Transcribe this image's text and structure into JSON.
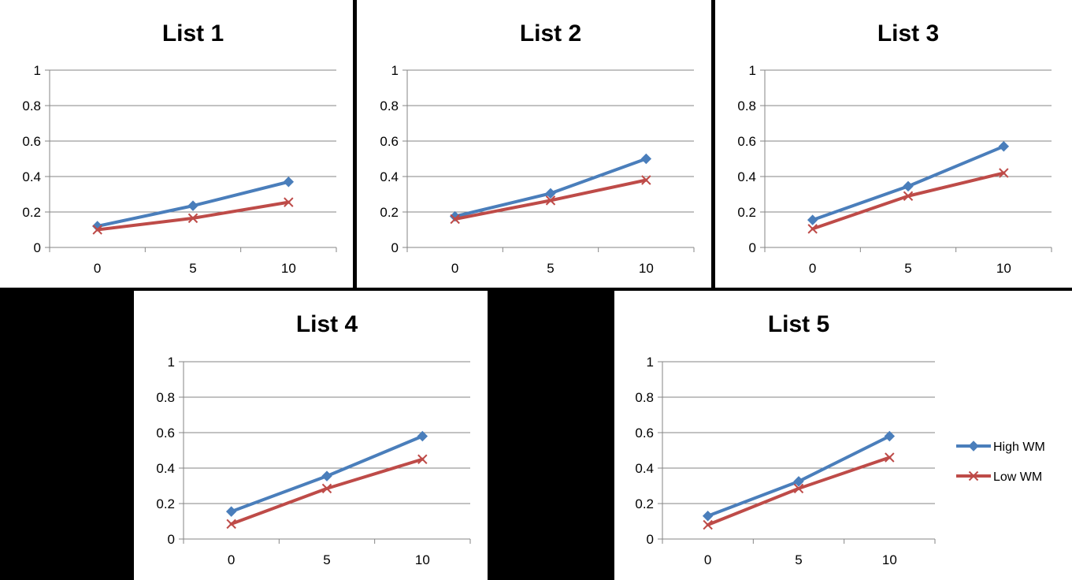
{
  "colors": {
    "high_wm": "#4A7EBB",
    "low_wm": "#BE4B48",
    "grid": "#868686",
    "background": "#000000",
    "panel": "#ffffff"
  },
  "legend": {
    "placement": "right",
    "items": [
      {
        "label": "High WM",
        "marker": "diamond"
      },
      {
        "label": "Low WM",
        "marker": "x"
      }
    ]
  },
  "chart_data": [
    {
      "type": "line",
      "title": "List 1",
      "categories": [
        "0",
        "5",
        "10"
      ],
      "ylim": [
        0,
        1
      ],
      "yticks": [
        "0",
        "0.2",
        "0.4",
        "0.6",
        "0.8",
        "1"
      ],
      "grid": true,
      "series": [
        {
          "name": "High WM",
          "values": [
            0.12,
            0.235,
            0.37
          ]
        },
        {
          "name": "Low WM",
          "values": [
            0.1,
            0.165,
            0.255
          ]
        }
      ]
    },
    {
      "type": "line",
      "title": "List 2",
      "categories": [
        "0",
        "5",
        "10"
      ],
      "ylim": [
        0,
        1
      ],
      "yticks": [
        "0",
        "0.2",
        "0.4",
        "0.6",
        "0.8",
        "1"
      ],
      "grid": true,
      "series": [
        {
          "name": "High WM",
          "values": [
            0.175,
            0.305,
            0.5
          ]
        },
        {
          "name": "Low WM",
          "values": [
            0.16,
            0.265,
            0.38
          ]
        }
      ]
    },
    {
      "type": "line",
      "title": "List 3",
      "categories": [
        "0",
        "5",
        "10"
      ],
      "ylim": [
        0,
        1
      ],
      "yticks": [
        "0",
        "0.2",
        "0.4",
        "0.6",
        "0.8",
        "1"
      ],
      "grid": true,
      "series": [
        {
          "name": "High WM",
          "values": [
            0.155,
            0.345,
            0.57
          ]
        },
        {
          "name": "Low WM",
          "values": [
            0.105,
            0.29,
            0.42
          ]
        }
      ]
    },
    {
      "type": "line",
      "title": "List 4",
      "categories": [
        "0",
        "5",
        "10"
      ],
      "ylim": [
        0,
        1
      ],
      "yticks": [
        "0",
        "0.2",
        "0.4",
        "0.6",
        "0.8",
        "1"
      ],
      "grid": true,
      "series": [
        {
          "name": "High WM",
          "values": [
            0.155,
            0.355,
            0.58
          ]
        },
        {
          "name": "Low WM",
          "values": [
            0.085,
            0.285,
            0.45
          ]
        }
      ]
    },
    {
      "type": "line",
      "title": "List 5",
      "categories": [
        "0",
        "5",
        "10"
      ],
      "ylim": [
        0,
        1
      ],
      "yticks": [
        "0",
        "0.2",
        "0.4",
        "0.6",
        "0.8",
        "1"
      ],
      "grid": true,
      "series": [
        {
          "name": "High WM",
          "values": [
            0.13,
            0.325,
            0.58
          ]
        },
        {
          "name": "Low WM",
          "values": [
            0.08,
            0.285,
            0.46
          ]
        }
      ]
    }
  ]
}
